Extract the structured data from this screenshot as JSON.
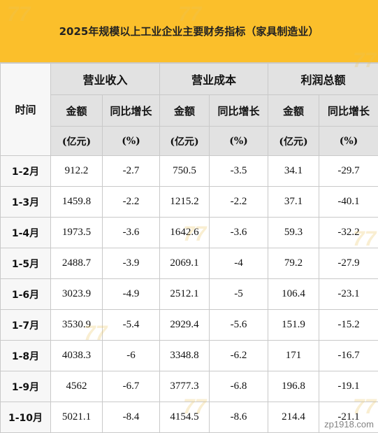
{
  "title": "2025年规模以上工业企业主要财务指标（家具制造业）",
  "headers": {
    "time": "时间",
    "groups": [
      "营业收入",
      "营业成本",
      "利润总额"
    ],
    "amount": "金额",
    "growth": "同比增长",
    "unit_amount": "(亿元)",
    "unit_growth": "(%)"
  },
  "rows": [
    {
      "period": "1-2月",
      "rev": "912.2",
      "rev_g": "-2.7",
      "cost": "750.5",
      "cost_g": "-3.5",
      "profit": "34.1",
      "profit_g": "-29.7"
    },
    {
      "period": "1-3月",
      "rev": "1459.8",
      "rev_g": "-2.2",
      "cost": "1215.2",
      "cost_g": "-2.2",
      "profit": "37.1",
      "profit_g": "-40.1"
    },
    {
      "period": "1-4月",
      "rev": "1973.5",
      "rev_g": "-3.6",
      "cost": "1642.6",
      "cost_g": "-3.6",
      "profit": "59.3",
      "profit_g": "-32.2"
    },
    {
      "period": "1-5月",
      "rev": "2488.7",
      "rev_g": "-3.9",
      "cost": "2069.1",
      "cost_g": "-4",
      "profit": "79.2",
      "profit_g": "-27.9"
    },
    {
      "period": "1-6月",
      "rev": "3023.9",
      "rev_g": "-4.9",
      "cost": "2512.1",
      "cost_g": "-5",
      "profit": "106.4",
      "profit_g": "-23.1"
    },
    {
      "period": "1-7月",
      "rev": "3530.9",
      "rev_g": "-5.4",
      "cost": "2929.4",
      "cost_g": "-5.6",
      "profit": "151.9",
      "profit_g": "-15.2"
    },
    {
      "period": "1-8月",
      "rev": "4038.3",
      "rev_g": "-6",
      "cost": "3348.8",
      "cost_g": "-6.2",
      "profit": "171",
      "profit_g": "-16.7"
    },
    {
      "period": "1-9月",
      "rev": "4562",
      "rev_g": "-6.7",
      "cost": "3777.3",
      "cost_g": "-6.8",
      "profit": "196.8",
      "profit_g": "-19.1"
    },
    {
      "period": "1-10月",
      "rev": "5021.1",
      "rev_g": "-8.4",
      "cost": "4154.5",
      "cost_g": "-8.6",
      "profit": "214.4",
      "profit_g": "-21.1"
    }
  ],
  "watermark": "zp1918.com",
  "colors": {
    "header_bg": "#fbbf2b",
    "head_cell_bg": "#e2e2e2",
    "border": "#c9c9c9"
  }
}
